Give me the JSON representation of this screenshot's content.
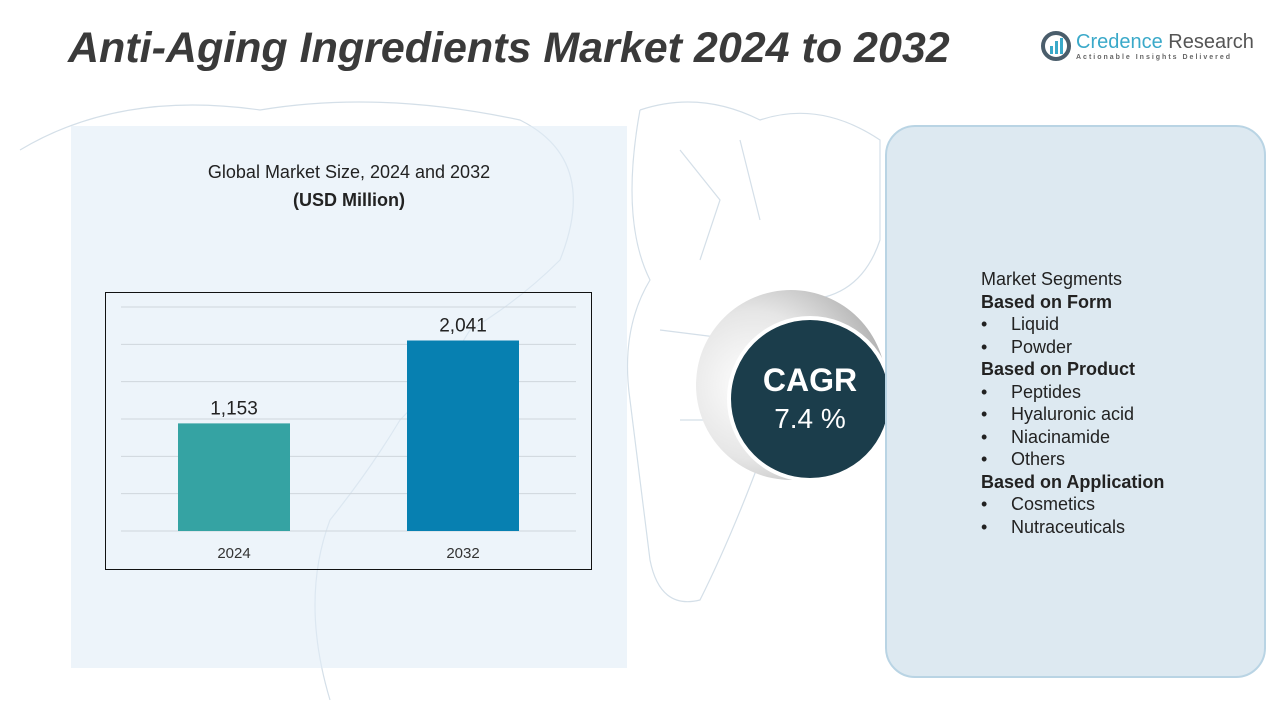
{
  "title": "Anti-Aging Ingredients Market 2024 to 2032",
  "logo": {
    "name_part1": "Credence",
    "name_part2": " Research",
    "tagline": "Actionable Insights Delivered"
  },
  "chart_data": {
    "type": "bar",
    "title": "Global Market Size, 2024 and 2032",
    "subtitle": "(USD Million)",
    "categories": [
      "2024",
      "2032"
    ],
    "values": [
      1153,
      2041
    ],
    "value_labels": [
      "1,153",
      "2,041"
    ],
    "colors": [
      "#35a3a3",
      "#0780b1"
    ],
    "ylim": [
      0,
      2400
    ],
    "grid": true
  },
  "cagr": {
    "label": "CAGR",
    "value": "7.4 %"
  },
  "segments": {
    "heading": "Market Segments",
    "groups": [
      {
        "title": "Based on Form",
        "items": [
          "Liquid",
          "Powder"
        ]
      },
      {
        "title": "Based on Product",
        "items": [
          "Peptides",
          "Hyaluronic acid",
          "Niacinamide",
          "Others"
        ]
      },
      {
        "title": "Based on Application",
        "items": [
          "Cosmetics",
          "Nutraceuticals"
        ]
      }
    ]
  }
}
